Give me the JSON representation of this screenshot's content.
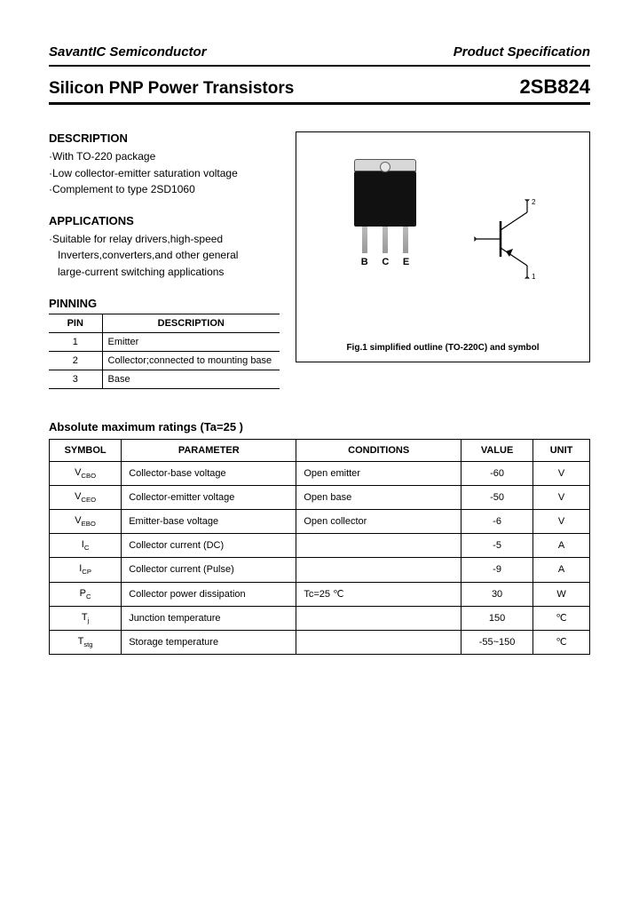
{
  "header": {
    "company": "SavantIC Semiconductor",
    "doc_type": "Product Specification"
  },
  "title": {
    "left": "Silicon PNP Power Transistors",
    "right": "2SB824"
  },
  "description": {
    "heading": "DESCRIPTION",
    "lines": [
      "·With TO-220 package",
      "·Low collector-emitter saturation voltage",
      "·Complement to type 2SD1060"
    ]
  },
  "applications": {
    "heading": "APPLICATIONS",
    "lines": [
      "·Suitable for relay drivers,high-speed",
      "Inverters,converters,and other general",
      "large-current switching applications"
    ]
  },
  "pinning": {
    "heading": "PINNING",
    "cols": [
      "PIN",
      "DESCRIPTION"
    ],
    "rows": [
      {
        "pin": "1",
        "desc": "Emitter"
      },
      {
        "pin": "2",
        "desc": "Collector;connected to mounting base"
      },
      {
        "pin": "3",
        "desc": "Base"
      }
    ]
  },
  "figure": {
    "pin_labels": [
      "B",
      "C",
      "E"
    ],
    "caption": "Fig.1 simplified outline (TO-220C) and symbol"
  },
  "ratings": {
    "title": "Absolute maximum ratings (Ta=25  )",
    "cols": [
      "SYMBOL",
      "PARAMETER",
      "CONDITIONS",
      "VALUE",
      "UNIT"
    ],
    "rows": [
      {
        "sym_main": "V",
        "sym_sub": "CBO",
        "param": "Collector-base voltage",
        "cond": "Open emitter",
        "val": "-60",
        "unit": "V"
      },
      {
        "sym_main": "V",
        "sym_sub": "CEO",
        "param": "Collector-emitter voltage",
        "cond": "Open base",
        "val": "-50",
        "unit": "V"
      },
      {
        "sym_main": "V",
        "sym_sub": "EBO",
        "param": "Emitter-base voltage",
        "cond": "Open collector",
        "val": "-6",
        "unit": "V"
      },
      {
        "sym_main": "I",
        "sym_sub": "C",
        "param": "Collector current (DC)",
        "cond": "",
        "val": "-5",
        "unit": "A"
      },
      {
        "sym_main": "I",
        "sym_sub": "CP",
        "param": "Collector current (Pulse)",
        "cond": "",
        "val": "-9",
        "unit": "A"
      },
      {
        "sym_main": "P",
        "sym_sub": "C",
        "param": "Collector power dissipation",
        "cond": "Tc=25 ℃",
        "val": "30",
        "unit": "W"
      },
      {
        "sym_main": "T",
        "sym_sub": "j",
        "param": "Junction temperature",
        "cond": "",
        "val": "150",
        "unit": "℃"
      },
      {
        "sym_main": "T",
        "sym_sub": "stg",
        "param": "Storage temperature",
        "cond": "",
        "val": "-55~150",
        "unit": "℃"
      }
    ]
  },
  "colors": {
    "text": "#000000",
    "border": "#000000",
    "bg": "#ffffff"
  }
}
